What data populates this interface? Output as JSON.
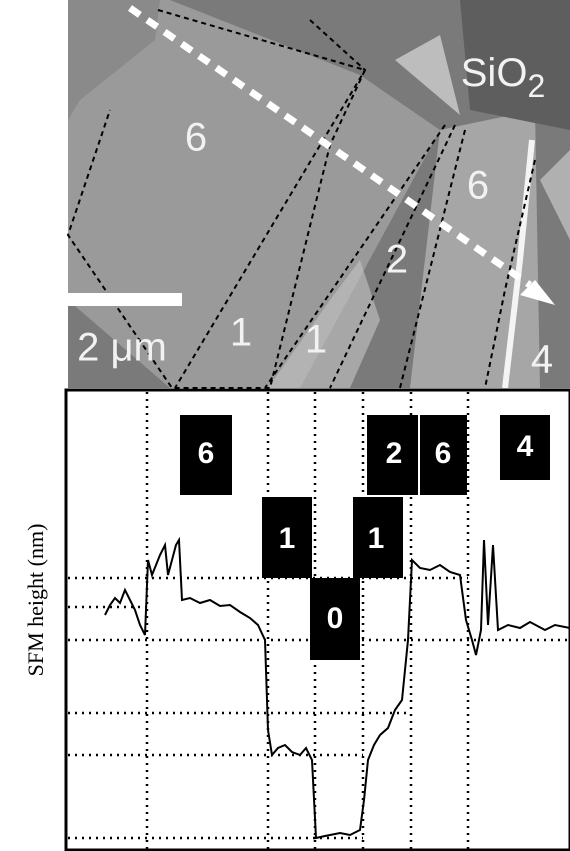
{
  "image": {
    "region_labels": [
      "6",
      "1",
      "1",
      "2",
      "6",
      "4"
    ],
    "material_label": {
      "base": "SiO",
      "subscript": "2"
    },
    "scale_bar": "2 μm"
  },
  "profile": {
    "y_axis_label": "SFM height (nm)",
    "layer_labels": [
      "6",
      "1",
      "0",
      "1",
      "2",
      "6",
      "4"
    ]
  }
}
